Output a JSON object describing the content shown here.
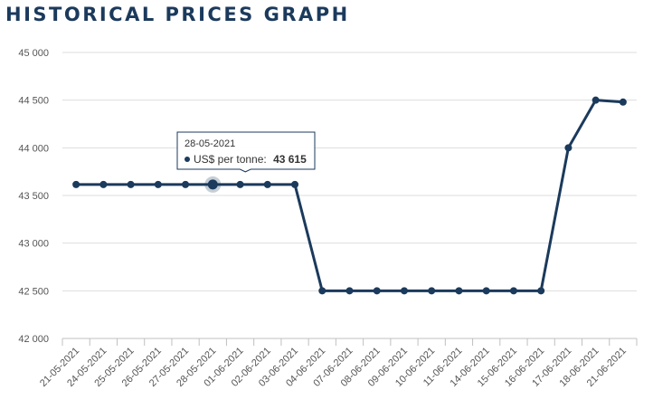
{
  "header": {
    "title": "HISTORICAL PRICES GRAPH"
  },
  "colors": {
    "line": "#1b3a5c",
    "grid": "#dddddd",
    "axis": "#c0c0c0",
    "tooltip_border": "#1b3a5c"
  },
  "tooltip": {
    "date": "28-05-2021",
    "series_label": "US$ per tonne:",
    "value_label": "43 615",
    "index": 5
  },
  "chart_data": {
    "type": "line",
    "title": "HISTORICAL PRICES GRAPH",
    "xlabel": "",
    "ylabel": "",
    "categories": [
      "21-05-2021",
      "24-05-2021",
      "25-05-2021",
      "26-05-2021",
      "27-05-2021",
      "28-05-2021",
      "01-06-2021",
      "02-06-2021",
      "03-06-2021",
      "04-06-2021",
      "07-06-2021",
      "08-06-2021",
      "09-06-2021",
      "10-06-2021",
      "11-06-2021",
      "14-06-2021",
      "15-06-2021",
      "16-06-2021",
      "17-06-2021",
      "18-06-2021",
      "21-06-2021"
    ],
    "series": [
      {
        "name": "US$ per tonne",
        "values": [
          43615,
          43615,
          43615,
          43615,
          43615,
          43615,
          43615,
          43615,
          43615,
          42500,
          42500,
          42500,
          42500,
          42500,
          42500,
          42500,
          42500,
          42500,
          44000,
          44500,
          44480
        ]
      }
    ],
    "ylim": [
      42000,
      45000
    ],
    "yticks": [
      42000,
      42500,
      43000,
      43500,
      44000,
      44500,
      45000
    ],
    "ytick_labels": [
      "42 000",
      "42 500",
      "43 000",
      "43 500",
      "44 000",
      "44 500",
      "45 000"
    ],
    "grid": true,
    "legend": "none"
  }
}
